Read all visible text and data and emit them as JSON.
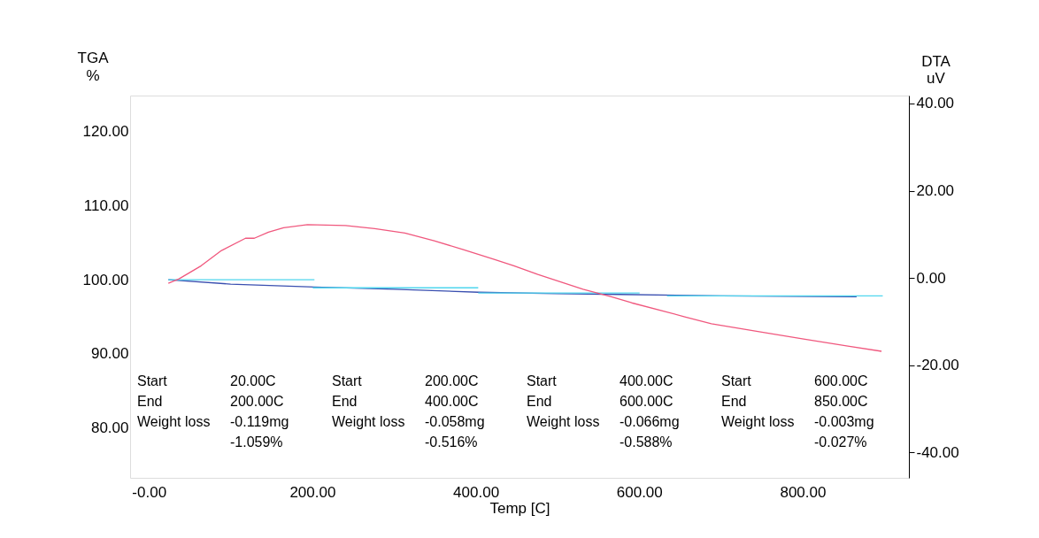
{
  "chart_data": {
    "type": "line",
    "xlabel": "Temp  [C]",
    "ylabel": "TGA\n%",
    "y2label": "DTA\nuV",
    "xlim": [
      -23,
      930
    ],
    "ylim": [
      73.2,
      124.9
    ],
    "y2lim": [
      -45.8,
      41.8
    ],
    "xticks": [
      {
        "value": 0,
        "label": "-0.00"
      },
      {
        "value": 200,
        "label": "200.00"
      },
      {
        "value": 400,
        "label": "400.00"
      },
      {
        "value": 600,
        "label": "600.00"
      },
      {
        "value": 800,
        "label": "800.00"
      }
    ],
    "yticks": [
      {
        "value": 80,
        "label": "80.00"
      },
      {
        "value": 90,
        "label": "90.00"
      },
      {
        "value": 100,
        "label": "100.00"
      },
      {
        "value": 110,
        "label": "110.00"
      },
      {
        "value": 120,
        "label": "120.00"
      }
    ],
    "y2ticks": [
      {
        "value": -40,
        "label": "-40.00"
      },
      {
        "value": -20,
        "label": "-20.00"
      },
      {
        "value": 0,
        "label": "0.00"
      },
      {
        "value": 20,
        "label": "20.00"
      },
      {
        "value": 40,
        "label": "40.00"
      }
    ],
    "grid": false,
    "marker": "none",
    "line_style": "solid",
    "series": [
      {
        "color": "#3a4fb0",
        "x": [
          23.8,
          100,
          202.6,
          300,
          403,
          500,
          576,
          700,
          866
        ],
        "values": [
          100,
          99.4,
          99.0,
          98.7,
          98.3,
          98.1,
          98.0,
          97.8,
          97.7
        ]
      },
      {
        "color": "#4fd6ee",
        "x": [
          23.8,
          202.6
        ],
        "values": [
          100,
          100
        ]
      },
      {
        "color": "#4fd6ee",
        "x": [
          200.5,
          403
        ],
        "values": [
          98.9,
          98.9
        ]
      },
      {
        "color": "#4fd6ee",
        "x": [
          403,
          600.5
        ],
        "values": [
          98.2,
          98.2
        ]
      },
      {
        "color": "#4fd6ee",
        "x": [
          634,
          898
        ],
        "values": [
          97.8,
          97.8
        ]
      },
      {
        "color": "#f0587e",
        "axis": "y2",
        "x": [
          23.8,
          36.9,
          64,
          88.9,
          118.2,
          129,
          146.3,
          164.8,
          194,
          240.7,
          276.4,
          313.3,
          349.1,
          384.8,
          421.7,
          446.6,
          475.9,
          531.2,
          565.9,
          590.8,
          655.8,
          688.3,
          750.1,
          801.1,
          855.3,
          896.5
        ],
        "values": [
          -1.2,
          -0.2,
          2.8,
          6.3,
          9.1,
          9.1,
          10.5,
          11.5,
          12.2,
          12,
          11.3,
          10.3,
          8.5,
          6.5,
          4.3,
          2.8,
          0.8,
          -2.6,
          -4.3,
          -5.7,
          -8.9,
          -10.5,
          -12.4,
          -14,
          -15.6,
          -16.8
        ]
      }
    ],
    "annotations": [
      "Start\nEnd\nWeight loss",
      "20.00C\n200.00C\n-0.119mg\n-1.059%",
      "Start\nEnd\nWeight loss",
      "200.00C\n400.00C\n-0.058mg\n-0.516%",
      "Start\nEnd\nWeight loss",
      "400.00C\n600.00C\n-0.066mg\n-0.588%",
      "Start\nEnd\nWeight loss",
      "600.00C\n850.00C\n-0.003mg\n-0.027%"
    ]
  }
}
